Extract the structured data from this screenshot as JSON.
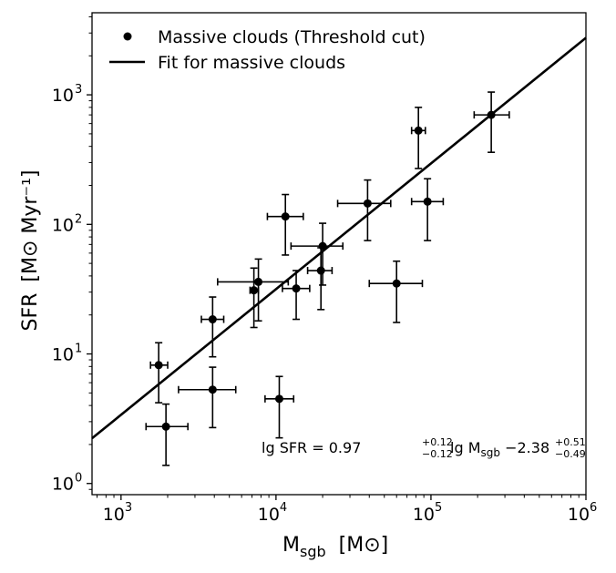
{
  "chart_data": {
    "type": "scatter",
    "xscale": "log",
    "yscale": "log",
    "xlim": [
      650,
      1000000
    ],
    "ylim": [
      0.82,
      4300
    ],
    "xlabel": {
      "main": "M",
      "sub": "sgb",
      "unit": "[M⊙]"
    },
    "ylabel": {
      "main": "SFR",
      "unit": "[M⊙ Myr⁻¹]"
    },
    "x_ticks": [
      {
        "value": 1000,
        "base": "10",
        "exp": "3"
      },
      {
        "value": 10000,
        "base": "10",
        "exp": "4"
      },
      {
        "value": 100000,
        "base": "10",
        "exp": "5"
      },
      {
        "value": 1000000,
        "base": "10",
        "exp": "6"
      }
    ],
    "y_ticks": [
      {
        "value": 1,
        "base": "10",
        "exp": "0"
      },
      {
        "value": 10,
        "base": "10",
        "exp": "1"
      },
      {
        "value": 100,
        "base": "10",
        "exp": "2"
      },
      {
        "value": 1000,
        "base": "10",
        "exp": "3"
      }
    ],
    "legend": {
      "position": "top-left",
      "entries": [
        {
          "marker": "point",
          "label": "Massive clouds (Threshold cut)"
        },
        {
          "marker": "line",
          "label": "Fit for massive clouds"
        }
      ]
    },
    "fit": {
      "slope": 0.97,
      "intercept": -2.38,
      "x_range": [
        650,
        1000000
      ]
    },
    "annotation": {
      "position": "bottom-right",
      "lhs": "lg SFR = ",
      "slope": "0.97",
      "slope_up": "+0.12",
      "slope_down": "−0.12",
      "mid": " lg M",
      "sub": "sgb",
      "intercept": " −2.38",
      "int_up": "+0.51",
      "int_down": "−0.49"
    },
    "series": [
      {
        "name": "Massive clouds (Threshold cut)",
        "points": [
          {
            "x": 245000,
            "y": 700,
            "xerr": [
              190000,
              320000
            ],
            "yerr": [
              360,
              1050
            ]
          },
          {
            "x": 83000,
            "y": 530,
            "xerr": [
              75000,
              92000
            ],
            "yerr": [
              270,
              800
            ]
          },
          {
            "x": 39000,
            "y": 145,
            "xerr": [
              25000,
              55000
            ],
            "yerr": [
              75,
              220
            ]
          },
          {
            "x": 95000,
            "y": 150,
            "xerr": [
              75000,
              120000
            ],
            "yerr": [
              75,
              225
            ]
          },
          {
            "x": 11500,
            "y": 115,
            "xerr": [
              8800,
              15000
            ],
            "yerr": [
              58,
              170
            ]
          },
          {
            "x": 20000,
            "y": 68,
            "xerr": [
              12500,
              27000
            ],
            "yerr": [
              34,
              102
            ]
          },
          {
            "x": 19500,
            "y": 44,
            "xerr": [
              16000,
              23000
            ],
            "yerr": [
              22,
              66
            ]
          },
          {
            "x": 7700,
            "y": 36,
            "xerr": [
              4200,
              12000
            ],
            "yerr": [
              18,
              54
            ]
          },
          {
            "x": 7200,
            "y": 31,
            "xerr": [
              6800,
              7700
            ],
            "yerr": [
              16,
              46
            ]
          },
          {
            "x": 13500,
            "y": 32,
            "xerr": [
              11000,
              16500
            ],
            "yerr": [
              18.5,
              44
            ]
          },
          {
            "x": 60000,
            "y": 35,
            "xerr": [
              40000,
              88000
            ],
            "yerr": [
              17.5,
              52
            ]
          },
          {
            "x": 3900,
            "y": 18.5,
            "xerr": [
              3300,
              4600
            ],
            "yerr": [
              9.5,
              27.5
            ]
          },
          {
            "x": 1750,
            "y": 8.2,
            "xerr": [
              1550,
              2000
            ],
            "yerr": [
              4.2,
              12.2
            ]
          },
          {
            "x": 3900,
            "y": 5.3,
            "xerr": [
              2350,
              5500
            ],
            "yerr": [
              2.7,
              7.9
            ]
          },
          {
            "x": 10500,
            "y": 4.5,
            "xerr": [
              8500,
              13000
            ],
            "yerr": [
              2.25,
              6.7
            ]
          },
          {
            "x": 1950,
            "y": 2.75,
            "xerr": [
              1450,
              2700
            ],
            "yerr": [
              1.38,
              4.1
            ]
          }
        ]
      }
    ]
  }
}
